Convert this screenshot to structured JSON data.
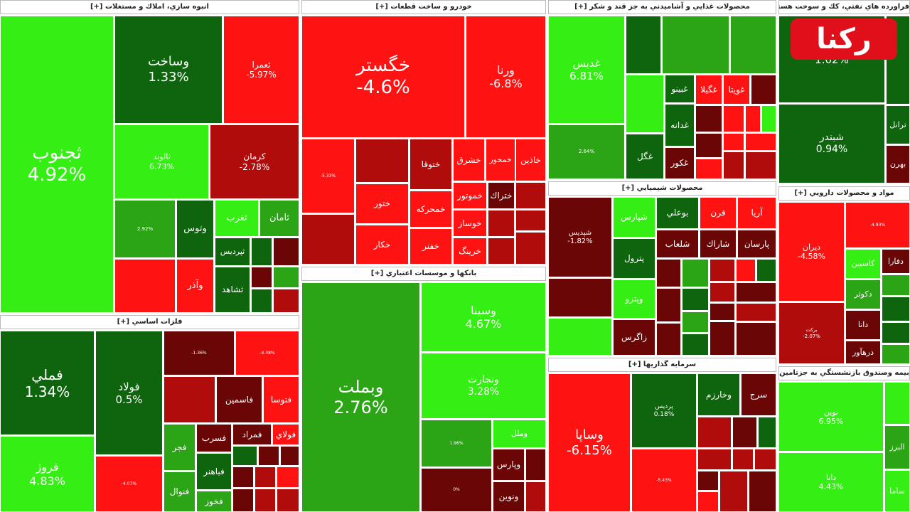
{
  "sectors": [
    {
      "title": "انبوه سازي، املاك و مستغلات [+]",
      "tiles": [
        {
          "name": "ثجنوب",
          "change": "4.92%"
        },
        {
          "name": "وساخت",
          "change": "1.33%"
        },
        {
          "name": "ثعمرا",
          "change": "-5.97%"
        },
        {
          "name": "ثالوند",
          "change": "6.73%"
        },
        {
          "name": "كرمان",
          "change": "-2.78%"
        },
        {
          "change": "2.92%"
        },
        {
          "name": "وتوس"
        },
        {
          "name": "ثغرب"
        },
        {
          "name": "ثامان"
        },
        {
          "name": "وآذر"
        },
        {
          "name": "ثپرديس"
        },
        {
          "name": "ثشاهد"
        }
      ]
    },
    {
      "title": "خودرو و ساخت قطعات [+]",
      "tiles": [
        {
          "name": "خگستر",
          "change": "-4.6%"
        },
        {
          "name": "ورنا",
          "change": "-6.8%"
        },
        {
          "change": "-5.33%"
        },
        {
          "name": "ختوقا"
        },
        {
          "name": "خشرق"
        },
        {
          "name": "خمحور"
        },
        {
          "name": "خاذين"
        },
        {
          "name": "ختور"
        },
        {
          "name": "خكار"
        },
        {
          "name": "خمحركه"
        },
        {
          "name": "خفنر"
        },
        {
          "name": "خموتور"
        },
        {
          "name": "ختراك"
        },
        {
          "name": "خوساز"
        },
        {
          "name": "خرينگ"
        }
      ]
    },
    {
      "title": "بانكها و موسسات اعتباري [+]",
      "tiles": [
        {
          "name": "وبملت",
          "change": "2.76%"
        },
        {
          "name": "وسينا",
          "change": "4.67%"
        },
        {
          "name": "وتجارت",
          "change": "3.28%"
        },
        {
          "change": "1.96%"
        },
        {
          "name": "وملل"
        },
        {
          "change": "0%"
        },
        {
          "name": "وپارس"
        },
        {
          "name": "ونوين"
        }
      ]
    },
    {
      "title": "محصولات غذايي و آشاميدني به جز قند و شكر [+]",
      "tiles": [
        {
          "name": "غديس",
          "change": "6.81%"
        },
        {
          "change": "2.64%"
        },
        {
          "name": "غگل"
        },
        {
          "name": "غبينو"
        },
        {
          "name": "غدانه"
        },
        {
          "name": "غكور"
        },
        {
          "name": "غگيلا"
        },
        {
          "name": "غويتا"
        }
      ]
    },
    {
      "title": "محصولات شيميايي [+]",
      "tiles": [
        {
          "name": "شپديس",
          "change": "-1.82%"
        },
        {
          "name": "شپارس"
        },
        {
          "name": "پترول"
        },
        {
          "name": "وپترو"
        },
        {
          "name": "زاگرس"
        },
        {
          "name": "بوعلي"
        },
        {
          "name": "قرن"
        },
        {
          "name": "آريا"
        },
        {
          "name": "شلعاب"
        },
        {
          "name": "شاراك"
        },
        {
          "name": "پارسان"
        }
      ]
    },
    {
      "title": "سرمايه گذاريها [+]",
      "tiles": [
        {
          "name": "وساپا",
          "change": "-6.15%"
        },
        {
          "name": "پرديس",
          "change": "0.18%"
        },
        {
          "change": "-5.43%"
        },
        {
          "name": "وخارزم"
        },
        {
          "name": "سرج"
        }
      ]
    },
    {
      "title": "فراورده هاي نفتي، كك و سوخت هسته اي [+]",
      "tiles": [
        {
          "change": "1.02%"
        },
        {
          "name": "شبندر",
          "change": "0.94%"
        },
        {
          "name": "ترانل"
        },
        {
          "name": "بهرن"
        }
      ]
    },
    {
      "title": "مواد و محصولات دارويي [+]",
      "tiles": [
        {
          "name": "ديران",
          "change": "-4.58%"
        },
        {
          "name": "بركت",
          "change": "-2.07%"
        },
        {
          "change": "-4.93%"
        },
        {
          "name": "كاسبين"
        },
        {
          "name": "دفارا"
        },
        {
          "name": "دكوثر"
        },
        {
          "name": "دانا"
        },
        {
          "name": "درهآور"
        }
      ]
    },
    {
      "title": "بيمه وصندوق بازنشستگي به جزتامين اجتماعي [+]",
      "tiles": [
        {
          "name": "نوين",
          "change": "6.95%"
        },
        {
          "name": "دانا",
          "change": "4.43%"
        },
        {
          "name": "البرز"
        },
        {
          "name": "ساما"
        }
      ]
    },
    {
      "title": "فلزات اساسي [+]",
      "tiles": [
        {
          "name": "فملي",
          "change": "1.34%"
        },
        {
          "name": "فروژ",
          "change": "4.83%"
        },
        {
          "name": "فولاد",
          "change": "0.5%"
        },
        {
          "change": "-4.07%"
        },
        {
          "change": "-1.36%"
        },
        {
          "change": "-4.38%"
        },
        {
          "name": "فاسمين"
        },
        {
          "name": "فتوسا"
        },
        {
          "name": "فجر"
        },
        {
          "name": "فنوال"
        },
        {
          "name": "فسرب"
        },
        {
          "name": "فباهنر"
        },
        {
          "name": "فخوز"
        },
        {
          "name": "فمراد"
        },
        {
          "name": "فولاي"
        }
      ]
    }
  ],
  "logo": "ركنا"
}
